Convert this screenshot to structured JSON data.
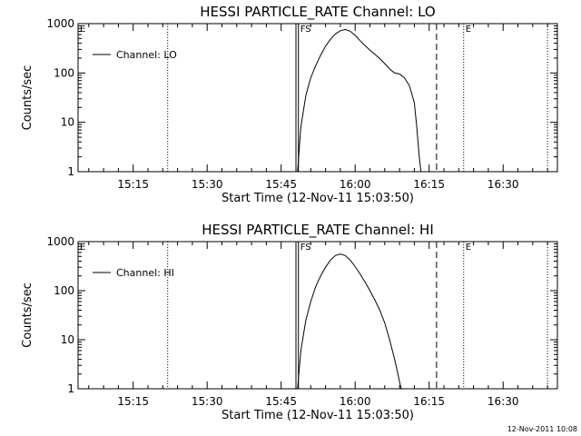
{
  "footer_timestamp": "12-Nov-2011 10:08",
  "chart_data": [
    {
      "type": "line",
      "title": "HESSI PARTICLE_RATE Channel: LO",
      "xlabel": "Start Time (12-Nov-11 15:03:50)",
      "ylabel": "Counts/sec",
      "yscale": "log",
      "xlim": [
        "15:03:50",
        "16:41:00"
      ],
      "ylim": [
        1,
        1000
      ],
      "x_ticks": [
        "15:15",
        "15:30",
        "15:45",
        "16:00",
        "16:15",
        "16:30"
      ],
      "y_ticks": [
        "1",
        "10",
        "100",
        "1000"
      ],
      "legend": {
        "placement": "top-left",
        "entries": [
          "Channel: LO"
        ]
      },
      "vertical_markers": [
        {
          "time": "15:03:50",
          "style": "dotted",
          "label": "E"
        },
        {
          "time": "15:22:00",
          "style": "dotted",
          "label": ""
        },
        {
          "time": "15:48:00",
          "style": "solid",
          "label": ""
        },
        {
          "time": "15:48:30",
          "style": "solid",
          "label": "FS"
        },
        {
          "time": "16:16:30",
          "style": "dashed",
          "label": ""
        },
        {
          "time": "16:22:00",
          "style": "dotted",
          "label": "E"
        },
        {
          "time": "16:39:00",
          "style": "dotted",
          "label": ""
        }
      ],
      "series": [
        {
          "x": [
            "15:48:20",
            "15:49:00",
            "15:50:00",
            "15:51:00",
            "15:52:00",
            "15:53:00",
            "15:54:00",
            "15:55:00",
            "15:56:00",
            "15:57:00",
            "15:58:00",
            "15:59:00",
            "16:00:00",
            "16:01:00",
            "16:02:00",
            "16:03:00",
            "16:04:00",
            "16:05:00",
            "16:06:00",
            "16:07:00",
            "16:08:00",
            "16:09:00",
            "16:10:00",
            "16:11:00",
            "16:12:00",
            "16:12:30",
            "16:13:00",
            "16:13:20"
          ],
          "values": [
            1,
            8,
            35,
            80,
            140,
            230,
            350,
            480,
            620,
            720,
            760,
            700,
            580,
            450,
            360,
            290,
            240,
            195,
            155,
            120,
            100,
            95,
            80,
            55,
            25,
            8,
            2,
            1
          ]
        }
      ]
    },
    {
      "type": "line",
      "title": "HESSI PARTICLE_RATE Channel: HI",
      "xlabel": "Start Time (12-Nov-11 15:03:50)",
      "ylabel": "Counts/sec",
      "yscale": "log",
      "xlim": [
        "15:03:50",
        "16:41:00"
      ],
      "ylim": [
        1,
        1000
      ],
      "x_ticks": [
        "15:15",
        "15:30",
        "15:45",
        "16:00",
        "16:15",
        "16:30"
      ],
      "y_ticks": [
        "1",
        "10",
        "100",
        "1000"
      ],
      "legend": {
        "placement": "top-left",
        "entries": [
          "Channel: HI"
        ]
      },
      "vertical_markers": [
        {
          "time": "15:03:50",
          "style": "dotted",
          "label": "E"
        },
        {
          "time": "15:22:00",
          "style": "dotted",
          "label": ""
        },
        {
          "time": "15:48:00",
          "style": "solid",
          "label": ""
        },
        {
          "time": "15:48:30",
          "style": "solid",
          "label": "FS"
        },
        {
          "time": "16:16:30",
          "style": "dashed",
          "label": ""
        },
        {
          "time": "16:22:00",
          "style": "dotted",
          "label": "E"
        },
        {
          "time": "16:39:00",
          "style": "dotted",
          "label": ""
        }
      ],
      "series": [
        {
          "x": [
            "15:48:20",
            "15:49:00",
            "15:50:00",
            "15:51:00",
            "15:52:00",
            "15:53:00",
            "15:54:00",
            "15:55:00",
            "15:56:00",
            "15:57:00",
            "15:58:00",
            "15:59:00",
            "16:00:00",
            "16:01:00",
            "16:02:00",
            "16:03:00",
            "16:04:00",
            "16:05:00",
            "16:06:00",
            "16:07:00",
            "16:08:00",
            "16:08:40",
            "16:09:00",
            "16:09:20"
          ],
          "values": [
            1,
            6,
            25,
            60,
            120,
            200,
            300,
            420,
            520,
            560,
            520,
            420,
            310,
            220,
            150,
            100,
            65,
            40,
            22,
            10,
            4,
            2,
            1.4,
            1
          ]
        }
      ]
    }
  ]
}
